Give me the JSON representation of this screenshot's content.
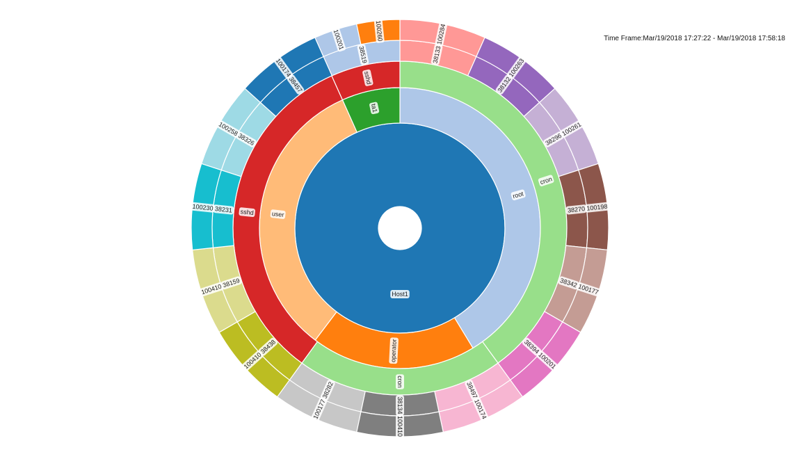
{
  "time_frame": "Time Frame:Mar/19/2018 17:27:22 - Mar/19/2018 17:58:18",
  "chart_data": {
    "type": "sunburst",
    "rings": [
      {
        "name": "host",
        "segments": [
          {
            "label": "Host1",
            "start": 0,
            "end": 1,
            "color": "#1f77b4"
          }
        ]
      },
      {
        "name": "user",
        "segments": [
          {
            "label": "root",
            "start": 0,
            "end": 0.413,
            "color": "#aec7e8"
          },
          {
            "label": "operator",
            "start": 0.413,
            "end": 0.603,
            "color": "#ff7f0e"
          },
          {
            "label": "user",
            "start": 0.603,
            "end": 0.933,
            "color": "#ffbb78"
          },
          {
            "label": "ta1",
            "start": 0.933,
            "end": 1.0,
            "color": "#2ca02c"
          }
        ]
      },
      {
        "name": "process",
        "segments": [
          {
            "label": "cron",
            "start": 0,
            "end": 0.4,
            "color": "#98df8a"
          },
          {
            "label": "cron",
            "start": 0.4,
            "end": 0.6,
            "color": "#98df8a"
          },
          {
            "label": "sshd",
            "start": 0.6,
            "end": 0.933,
            "color": "#d62728"
          },
          {
            "label": "sshd",
            "start": 0.933,
            "end": 1.0,
            "color": "#d62728"
          }
        ]
      },
      {
        "name": "pid",
        "segments": [
          {
            "label": "38133",
            "start": 0,
            "end": 0.0667,
            "color": "#ff9896"
          },
          {
            "label": "38132",
            "start": 0.0667,
            "end": 0.1333,
            "color": "#9467bd"
          },
          {
            "label": "38296",
            "start": 0.1333,
            "end": 0.2,
            "color": "#c5b0d5"
          },
          {
            "label": "38270",
            "start": 0.2,
            "end": 0.2667,
            "color": "#8c564b"
          },
          {
            "label": "38342",
            "start": 0.2667,
            "end": 0.3333,
            "color": "#c49c94"
          },
          {
            "label": "38394",
            "start": 0.3333,
            "end": 0.4,
            "color": "#e377c2"
          },
          {
            "label": "38497",
            "start": 0.4,
            "end": 0.4667,
            "color": "#f7b6d2"
          },
          {
            "label": "38134",
            "start": 0.4667,
            "end": 0.5333,
            "color": "#7f7f7f"
          },
          {
            "label": "38282",
            "start": 0.5333,
            "end": 0.6,
            "color": "#c7c7c7"
          },
          {
            "label": "38438",
            "start": 0.6,
            "end": 0.6667,
            "color": "#bcbd22"
          },
          {
            "label": "38159",
            "start": 0.6667,
            "end": 0.7333,
            "color": "#dbdb8d"
          },
          {
            "label": "38231",
            "start": 0.7333,
            "end": 0.8,
            "color": "#17becf"
          },
          {
            "label": "38326",
            "start": 0.8,
            "end": 0.8667,
            "color": "#9edae5"
          },
          {
            "label": "38457",
            "start": 0.8667,
            "end": 0.9333,
            "color": "#1f77b4"
          },
          {
            "label": "38519",
            "start": 0.9333,
            "end": 1.0,
            "color": "#aec7e8"
          }
        ]
      },
      {
        "name": "ppid",
        "segments": [
          {
            "label": "100284",
            "start": 0,
            "end": 0.0667,
            "color": "#ff9896"
          },
          {
            "label": "100263",
            "start": 0.0667,
            "end": 0.1333,
            "color": "#9467bd"
          },
          {
            "label": "100261",
            "start": 0.1333,
            "end": 0.2,
            "color": "#c5b0d5"
          },
          {
            "label": "100198",
            "start": 0.2,
            "end": 0.2667,
            "color": "#8c564b"
          },
          {
            "label": "100177",
            "start": 0.2667,
            "end": 0.3333,
            "color": "#c49c94"
          },
          {
            "label": "100201",
            "start": 0.3333,
            "end": 0.4,
            "color": "#e377c2"
          },
          {
            "label": "100174",
            "start": 0.4,
            "end": 0.4667,
            "color": "#f7b6d2"
          },
          {
            "label": "100410",
            "start": 0.4667,
            "end": 0.5333,
            "color": "#7f7f7f"
          },
          {
            "label": "100177",
            "start": 0.5333,
            "end": 0.6,
            "color": "#c7c7c7"
          },
          {
            "label": "100410",
            "start": 0.6,
            "end": 0.6667,
            "color": "#bcbd22"
          },
          {
            "label": "100410",
            "start": 0.6667,
            "end": 0.7333,
            "color": "#dbdb8d"
          },
          {
            "label": "100230",
            "start": 0.7333,
            "end": 0.8,
            "color": "#17becf"
          },
          {
            "label": "100258",
            "start": 0.8,
            "end": 0.8667,
            "color": "#9edae5"
          },
          {
            "label": "100174",
            "start": 0.8667,
            "end": 0.9333,
            "color": "#1f77b4"
          },
          {
            "label": "100201",
            "start": 0.9333,
            "end": 1.0,
            "color": "#aec7e8"
          },
          {
            "label": "100260",
            "start": 0.9333,
            "end": 1.0,
            "color": "#ff7f0e",
            "outer_split": true
          }
        ]
      }
    ]
  }
}
